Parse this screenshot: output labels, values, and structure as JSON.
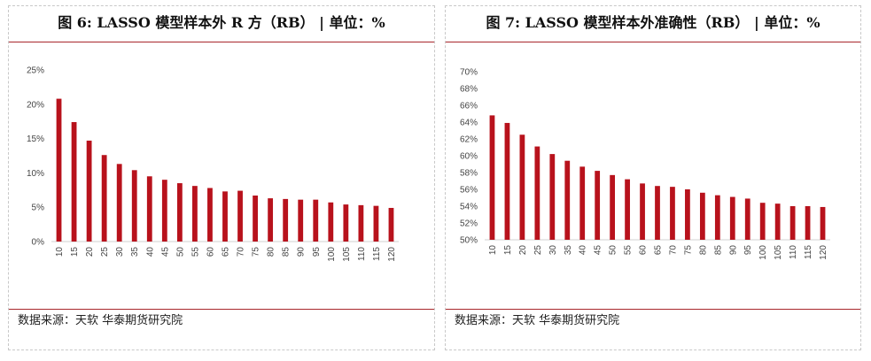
{
  "colors": {
    "bar": "#b8121c",
    "rule": "#a8272b",
    "axis": "#d0d0d0",
    "tick_text": "#444444"
  },
  "charts": [
    {
      "title": "图 6: LASSO 模型样本外 R 方（RB）  | 单位：%",
      "source": "数据来源：天软  华泰期货研究院",
      "chart_data": {
        "type": "bar",
        "title": "图 6: LASSO 模型样本外 R 方（RB）  | 单位：%",
        "categories": [
          "10",
          "15",
          "20",
          "25",
          "30",
          "35",
          "40",
          "45",
          "50",
          "55",
          "60",
          "65",
          "70",
          "75",
          "80",
          "85",
          "90",
          "95",
          "100",
          "105",
          "110",
          "115",
          "120"
        ],
        "values": [
          20.8,
          17.4,
          14.7,
          12.6,
          11.3,
          10.4,
          9.5,
          9.0,
          8.5,
          8.1,
          7.8,
          7.3,
          7.4,
          6.7,
          6.3,
          6.2,
          6.1,
          6.1,
          5.7,
          5.4,
          5.3,
          5.2,
          4.9
        ],
        "ylim": [
          0,
          25
        ],
        "yticks": [
          0,
          5,
          10,
          15,
          20,
          25
        ],
        "ytick_labels": [
          "0%",
          "5%",
          "10%",
          "15%",
          "20%",
          "25%"
        ],
        "xlabel": "",
        "ylabel": "",
        "grid": false,
        "legend": "none"
      }
    },
    {
      "title": "图  7: LASSO 模型样本外准确性（RB）  | 单位：%",
      "source": "数据来源：天软  华泰期货研究院",
      "chart_data": {
        "type": "bar",
        "title": "图  7: LASSO 模型样本外准确性（RB）  | 单位：%",
        "categories": [
          "10",
          "15",
          "20",
          "25",
          "30",
          "35",
          "40",
          "45",
          "50",
          "55",
          "60",
          "65",
          "70",
          "75",
          "80",
          "85",
          "90",
          "95",
          "100",
          "105",
          "110",
          "115",
          "120"
        ],
        "values": [
          64.8,
          63.9,
          62.5,
          61.1,
          60.2,
          59.4,
          58.7,
          58.2,
          57.7,
          57.2,
          56.7,
          56.4,
          56.3,
          56.0,
          55.6,
          55.3,
          55.1,
          54.9,
          54.4,
          54.3,
          54.0,
          54.0,
          53.9
        ],
        "ylim": [
          50,
          70
        ],
        "yticks": [
          50,
          52,
          54,
          56,
          58,
          60,
          62,
          64,
          66,
          68,
          70
        ],
        "ytick_labels": [
          "50%",
          "52%",
          "54%",
          "56%",
          "58%",
          "60%",
          "62%",
          "64%",
          "66%",
          "68%",
          "70%"
        ],
        "xlabel": "",
        "ylabel": "",
        "grid": false,
        "legend": "none"
      }
    }
  ]
}
